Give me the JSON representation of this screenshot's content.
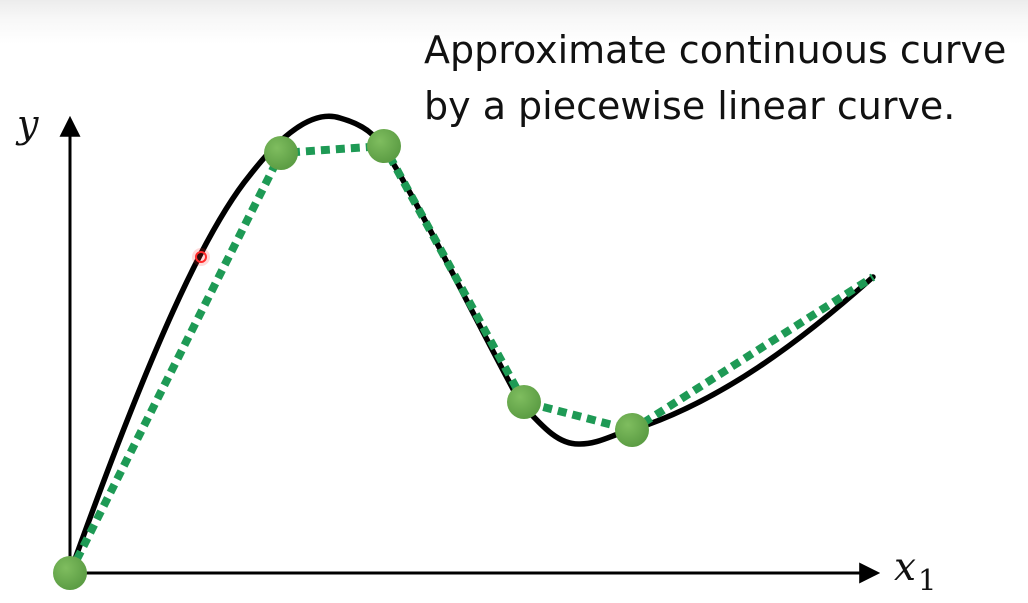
{
  "caption": {
    "line1": "Approximate continuous curve",
    "line2": "by a piecewise linear curve."
  },
  "axes": {
    "y_label": "y",
    "x_label": "x",
    "x_label_subscript": "1"
  },
  "colors": {
    "curve": "#000000",
    "piecewise": "#1e9a55",
    "points": "#6aa84f",
    "cursor": "#ff2a2a"
  }
}
